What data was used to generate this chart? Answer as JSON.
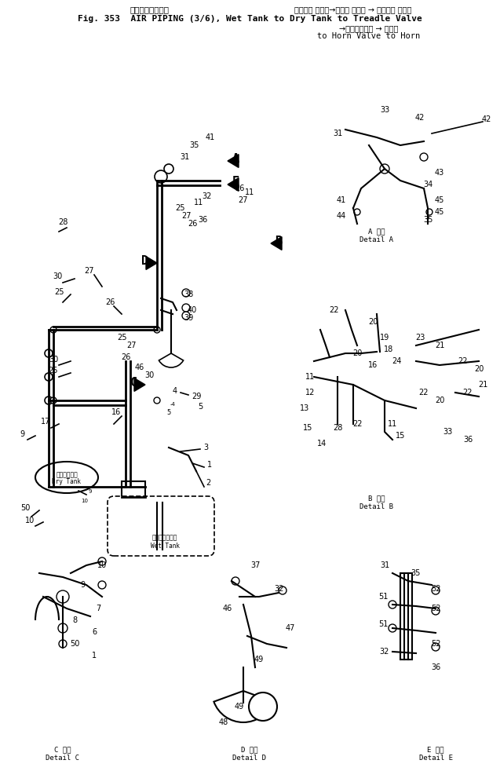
{
  "title_jp": "エアーパイピング          ウェット タンク→ドライ タンク → トレドル バルブ",
  "title_en": "Fig. 353  AIR PIPING (3/6), Wet Tank to Dry Tank to Treadle Valve",
  "title_en2": "→Horn Valve → Horn",
  "title_jp2": "→ホーンバルブ → ホーン",
  "bg_color": "#ffffff",
  "fg_color": "#000000",
  "detail_labels": [
    "C 詳細\nDetail C",
    "D 詳細\nDetail D",
    "E 詳細\nDetail E"
  ],
  "detail_a_label": "A 詳細\nDetail A",
  "detail_b_label": "B 詳細\nDetail B"
}
